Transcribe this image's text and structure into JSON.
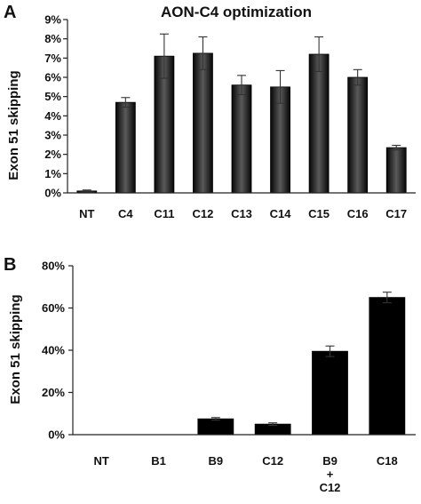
{
  "chart_data": [
    {
      "panel": "A",
      "type": "bar",
      "title": "AON-C4 optimization",
      "xlabel": "",
      "ylabel": "Exon 51 skipping",
      "ylim": [
        0,
        9
      ],
      "yticks": [
        "0%",
        "1%",
        "2%",
        "3%",
        "4%",
        "5%",
        "6%",
        "7%",
        "8%",
        "9%"
      ],
      "categories": [
        [
          "NT"
        ],
        [
          "C4"
        ],
        [
          "C11"
        ],
        [
          "C12"
        ],
        [
          "C13"
        ],
        [
          "C14"
        ],
        [
          "C15"
        ],
        [
          "C16"
        ],
        [
          "C17"
        ]
      ],
      "values": [
        0.1,
        4.7,
        7.1,
        7.25,
        5.6,
        5.5,
        7.2,
        6.0,
        2.35
      ],
      "errors": [
        0.05,
        0.25,
        1.15,
        0.85,
        0.5,
        0.85,
        0.9,
        0.4,
        0.12
      ],
      "grid": false,
      "bar_style": "gradient"
    },
    {
      "panel": "B",
      "type": "bar",
      "title": "",
      "xlabel": "",
      "ylabel": "Exon 51 skipping",
      "ylim": [
        0,
        80
      ],
      "yticks": [
        "0%",
        "20%",
        "40%",
        "60%",
        "80%"
      ],
      "categories": [
        [
          "NT"
        ],
        [
          "B1"
        ],
        [
          "B9"
        ],
        [
          "C12"
        ],
        [
          "B9",
          "+",
          "C12"
        ],
        [
          "C18"
        ]
      ],
      "values": [
        0,
        0,
        7.5,
        5,
        39.5,
        65
      ],
      "errors": [
        0,
        0,
        0.6,
        0.6,
        2.5,
        2.5
      ],
      "grid": false,
      "bar_style": "solid"
    }
  ],
  "colors": {
    "bar_solid": "#000000",
    "bar_gradient_center": "#5a5a5a",
    "bar_gradient_edge": "#060606"
  }
}
